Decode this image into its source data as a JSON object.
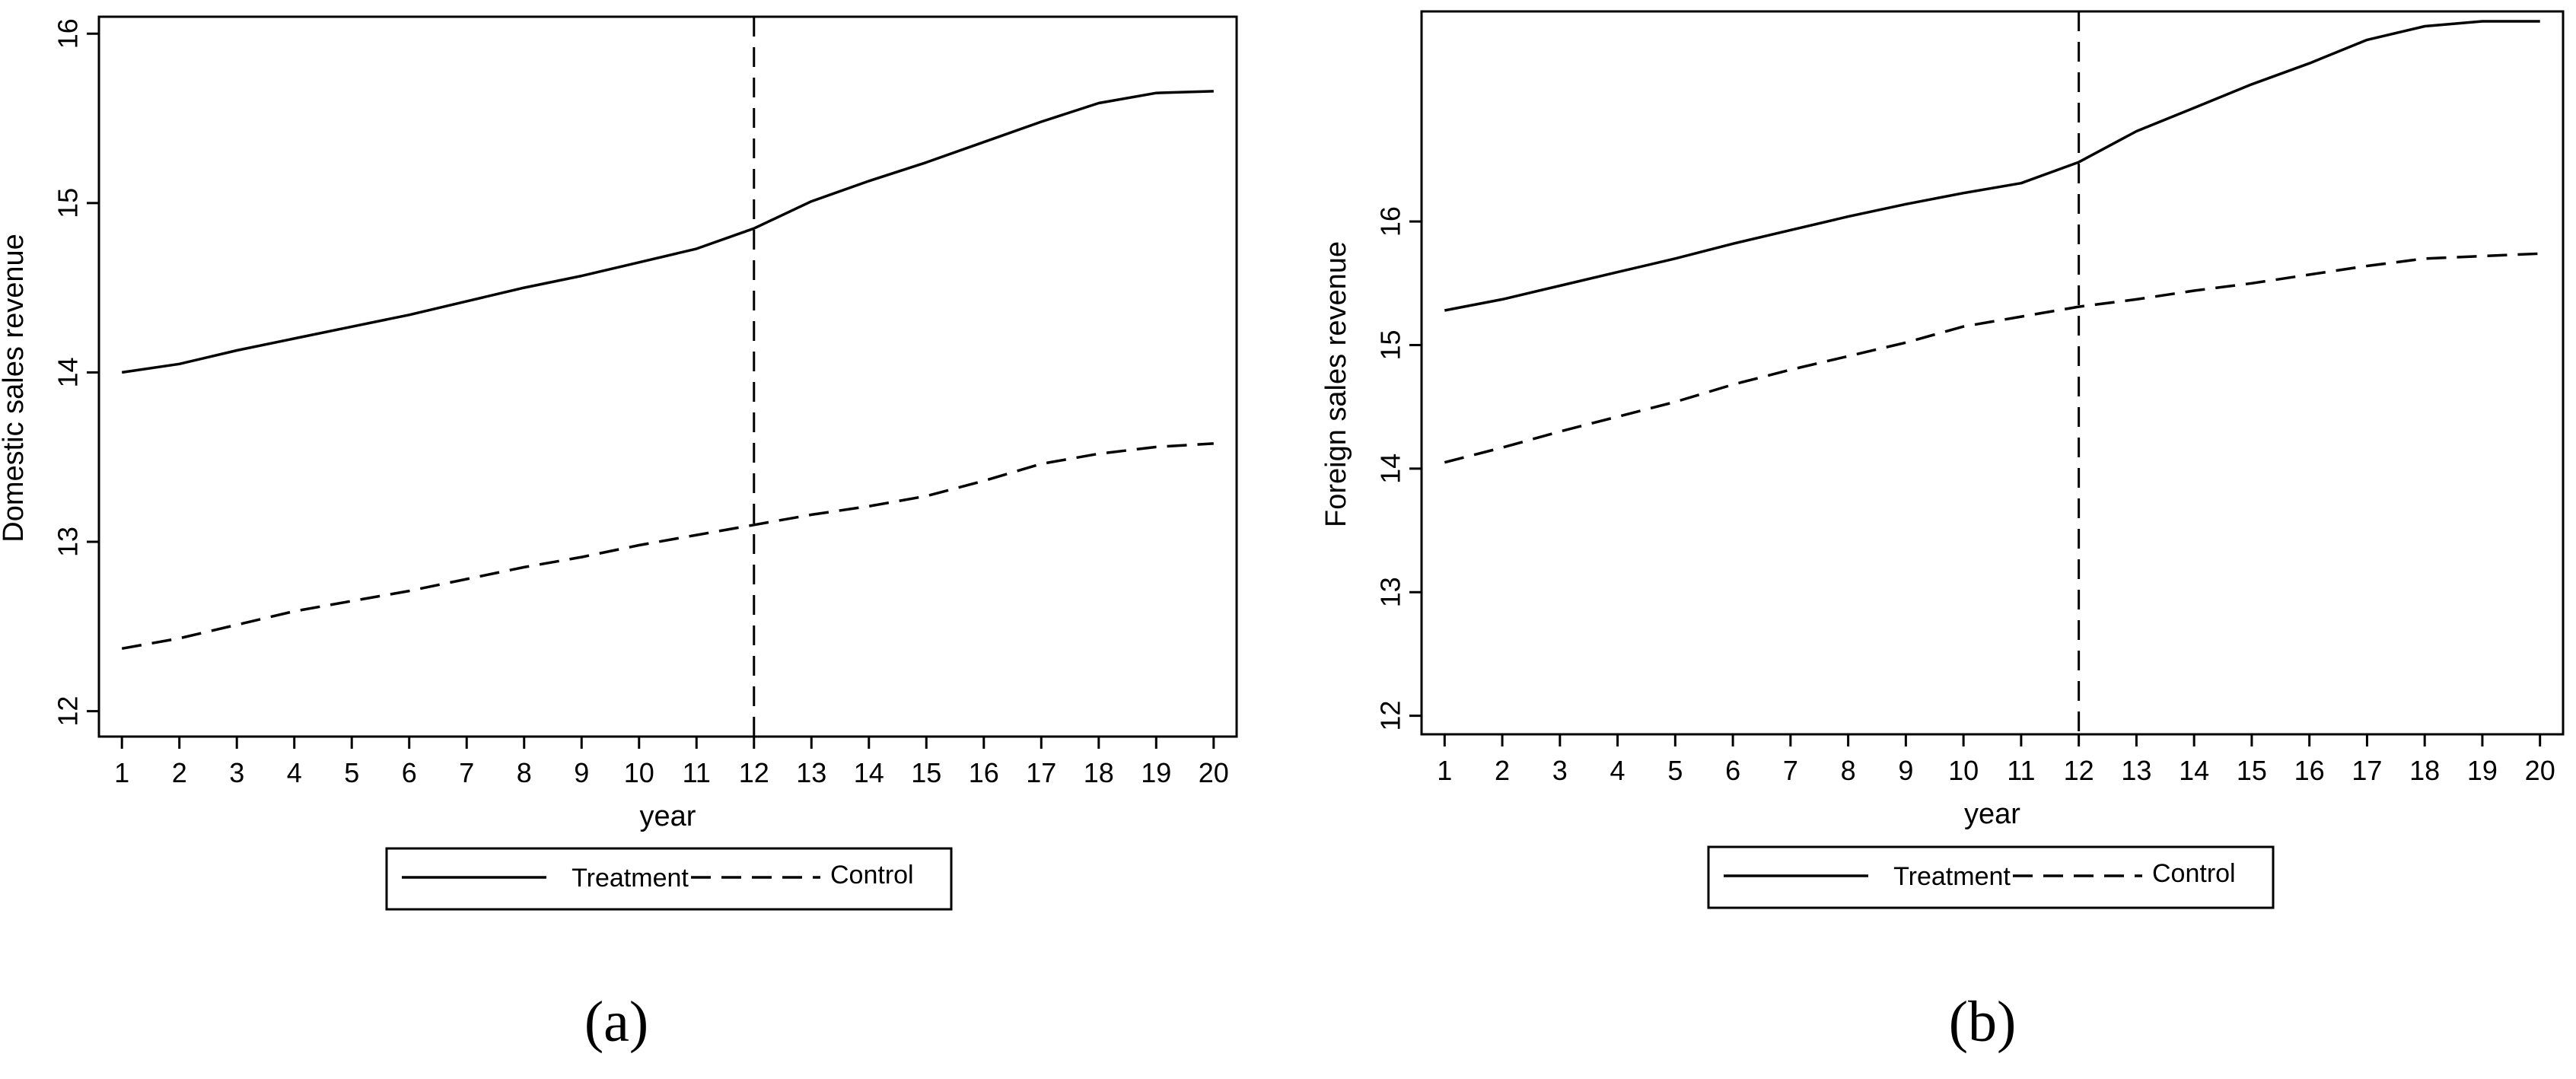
{
  "chart_data": [
    {
      "type": "line",
      "panel_label": "(a)",
      "xlabel": "year",
      "ylabel": "Domestic sales revenue",
      "x": [
        1,
        2,
        3,
        4,
        5,
        6,
        7,
        8,
        9,
        10,
        11,
        12,
        13,
        14,
        15,
        16,
        17,
        18,
        19,
        20
      ],
      "xticks": [
        "1",
        "2",
        "3",
        "4",
        "5",
        "6",
        "7",
        "8",
        "9",
        "10",
        "11",
        "12",
        "13",
        "14",
        "15",
        "16",
        "17",
        "18",
        "19",
        "20"
      ],
      "yticks": [
        "12",
        "13",
        "14",
        "15",
        "16"
      ],
      "xlim": [
        0.6,
        20.4
      ],
      "ylim": [
        11.85,
        16.1
      ],
      "vline_x": 12,
      "grid": false,
      "legend": "bottom-outside",
      "series": [
        {
          "name": "Treatment",
          "style": "solid",
          "values": [
            14.0,
            14.05,
            14.13,
            14.2,
            14.27,
            14.34,
            14.42,
            14.5,
            14.57,
            14.65,
            14.73,
            14.85,
            15.01,
            15.13,
            15.24,
            15.36,
            15.48,
            15.59,
            15.65,
            15.66
          ]
        },
        {
          "name": "Control",
          "style": "dashed",
          "values": [
            12.37,
            12.43,
            12.51,
            12.59,
            12.65,
            12.71,
            12.78,
            12.85,
            12.91,
            12.98,
            13.04,
            13.1,
            13.16,
            13.21,
            13.27,
            13.36,
            13.46,
            13.52,
            13.56,
            13.58
          ]
        }
      ]
    },
    {
      "type": "line",
      "panel_label": "(b)",
      "xlabel": "year",
      "ylabel": "Foreign sales revenue",
      "x": [
        1,
        2,
        3,
        4,
        5,
        6,
        7,
        8,
        9,
        10,
        11,
        12,
        13,
        14,
        15,
        16,
        17,
        18,
        19,
        20
      ],
      "xticks": [
        "1",
        "2",
        "3",
        "4",
        "5",
        "6",
        "7",
        "8",
        "9",
        "10",
        "11",
        "12",
        "13",
        "14",
        "15",
        "16",
        "17",
        "18",
        "19",
        "20"
      ],
      "yticks": [
        "12",
        "13",
        "14",
        "15",
        "16"
      ],
      "xlim": [
        0.6,
        20.4
      ],
      "ylim": [
        11.85,
        17.7
      ],
      "vline_x": 12,
      "grid": false,
      "legend": "bottom-outside",
      "series": [
        {
          "name": "Treatment",
          "style": "solid",
          "values": [
            15.28,
            15.37,
            15.48,
            15.59,
            15.7,
            15.82,
            15.93,
            16.04,
            16.14,
            16.23,
            16.31,
            16.48,
            16.73,
            16.92,
            17.11,
            17.28,
            17.47,
            17.58,
            17.62,
            17.62
          ]
        },
        {
          "name": "Control",
          "style": "dashed",
          "values": [
            14.05,
            14.17,
            14.3,
            14.42,
            14.54,
            14.68,
            14.8,
            14.91,
            15.02,
            15.15,
            15.23,
            15.31,
            15.37,
            15.44,
            15.5,
            15.57,
            15.64,
            15.7,
            15.72,
            15.74
          ]
        }
      ]
    }
  ]
}
